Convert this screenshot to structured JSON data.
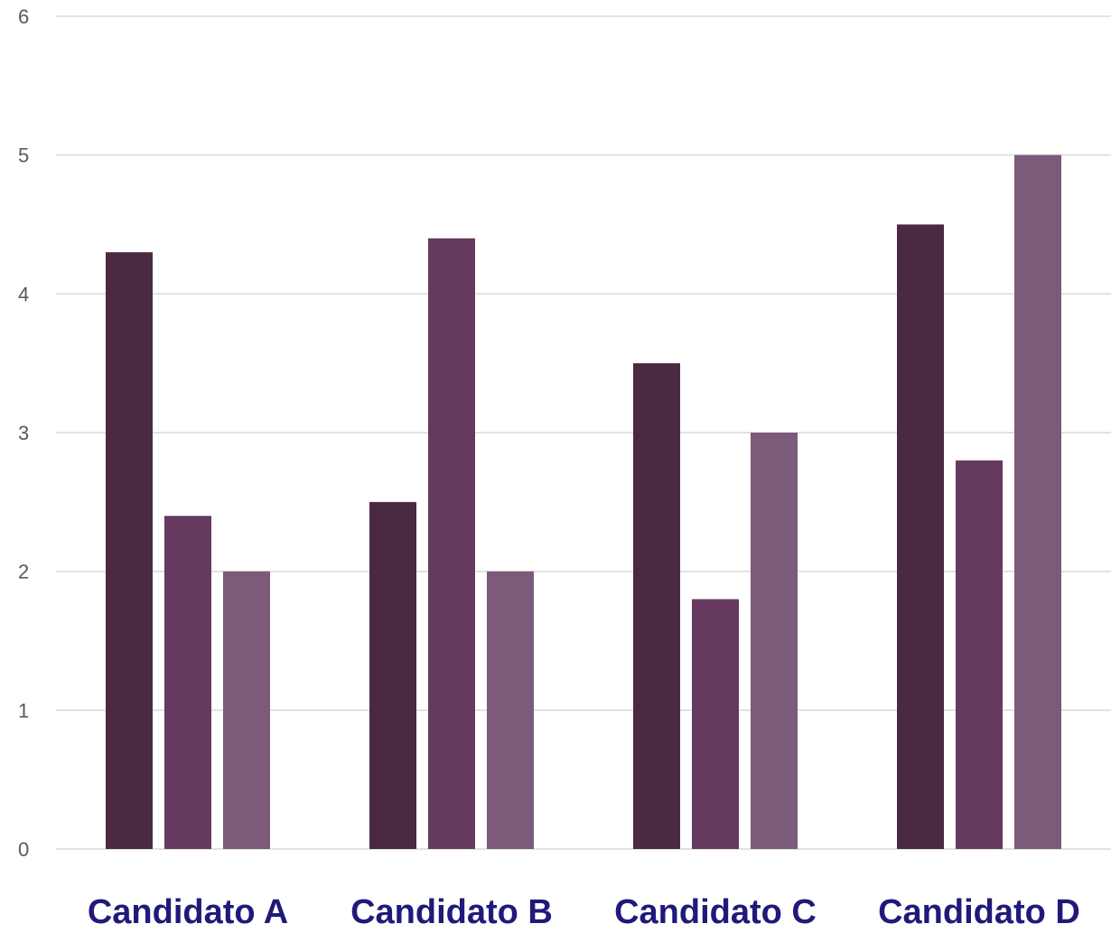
{
  "chart_data": {
    "type": "bar",
    "categories": [
      "Candidato A",
      "Candidato B",
      "Candidato C",
      "Candidato D"
    ],
    "series": [
      {
        "color": "#4a2a42",
        "values": [
          4.3,
          2.5,
          3.5,
          4.5
        ]
      },
      {
        "color": "#663a5e",
        "values": [
          2.4,
          4.4,
          1.8,
          2.8
        ]
      },
      {
        "color": "#7c5a79",
        "values": [
          2.0,
          2.0,
          3.0,
          5.0
        ]
      }
    ],
    "yticks": [
      "0",
      "1",
      "2",
      "3",
      "4",
      "5",
      "6"
    ],
    "ylim": [
      0,
      6
    ],
    "grid": true,
    "legend": "none",
    "colors": {
      "category_label": "#1f1a7a",
      "tick_label": "#595959",
      "gridline": "#d9d9d9"
    }
  }
}
